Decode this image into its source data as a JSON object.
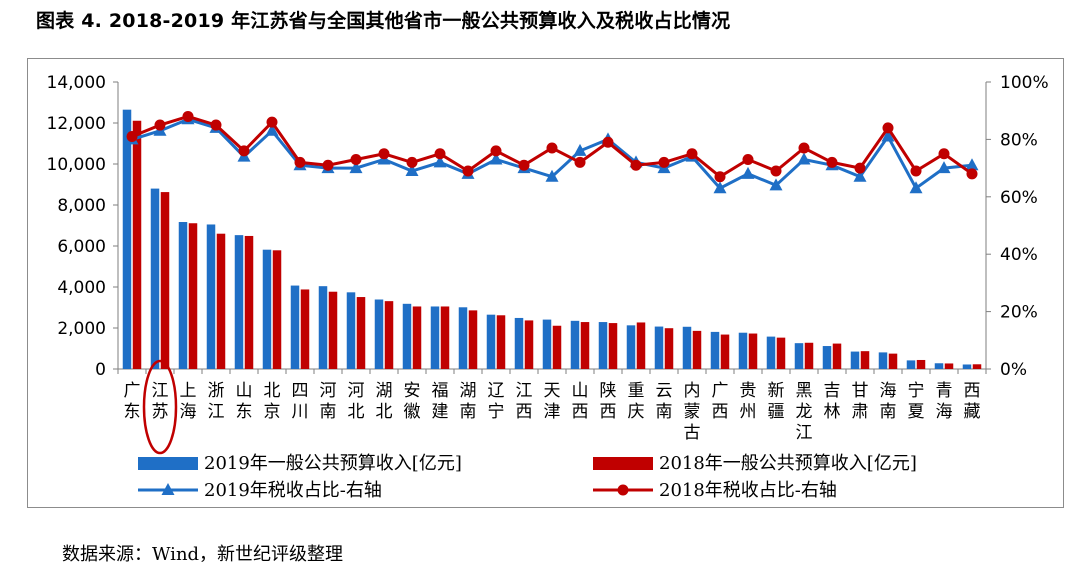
{
  "title": "图表 4. 2018-2019 年江苏省与全国其他省市一般公共预算收入及税收占比情况",
  "source": "数据来源：Wind，新世纪评级整理",
  "colors": {
    "blue": "#1f6fc6",
    "red": "#c00000",
    "axis": "#7f7f7f",
    "highlight": "#c00000"
  },
  "highlight_category": "江苏",
  "chart_data": {
    "type": "bar",
    "categories": [
      "广东",
      "江苏",
      "上海",
      "浙江",
      "山东",
      "北京",
      "四川",
      "河南",
      "河北",
      "湖北",
      "安徽",
      "福建",
      "湖南",
      "辽宁",
      "江西",
      "天津",
      "山西",
      "陕西",
      "重庆",
      "云南",
      "内蒙古",
      "广西",
      "贵州",
      "新疆",
      "黑龙江",
      "吉林",
      "甘肃",
      "海南",
      "宁夏",
      "青海",
      "西藏"
    ],
    "series": [
      {
        "name": "2019年一般公共预算收入[亿元]",
        "type": "bar",
        "axis": "left",
        "values": [
          12650,
          8800,
          7170,
          7050,
          6530,
          5820,
          4070,
          4040,
          3740,
          3390,
          3180,
          3050,
          3010,
          2650,
          2490,
          2410,
          2350,
          2290,
          2130,
          2070,
          2060,
          1810,
          1770,
          1580,
          1260,
          1120,
          850,
          810,
          420,
          280,
          220
        ]
      },
      {
        "name": "2018年一般公共预算收入[亿元]",
        "type": "bar",
        "axis": "left",
        "values": [
          12110,
          8630,
          7110,
          6600,
          6490,
          5790,
          3880,
          3770,
          3510,
          3310,
          3050,
          3050,
          2860,
          2620,
          2370,
          2110,
          2290,
          2240,
          2270,
          1990,
          1860,
          1680,
          1730,
          1530,
          1280,
          1240,
          870,
          750,
          440,
          270,
          230
        ]
      },
      {
        "name": "2019年税收占比-右轴",
        "type": "line",
        "axis": "right",
        "marker": "triangle",
        "values": [
          80,
          83,
          87,
          84,
          74,
          83,
          71,
          70,
          70,
          73,
          69,
          72,
          68,
          73,
          70,
          67,
          76,
          80,
          72,
          70,
          74,
          63,
          68,
          64,
          73,
          71,
          67,
          81,
          63,
          70,
          71
        ]
      },
      {
        "name": "2018年税收占比-右轴",
        "type": "line",
        "axis": "right",
        "marker": "circle",
        "values": [
          81,
          85,
          88,
          85,
          76,
          86,
          72,
          71,
          73,
          75,
          72,
          75,
          69,
          76,
          71,
          77,
          72,
          79,
          71,
          72,
          75,
          67,
          73,
          69,
          77,
          72,
          70,
          84,
          69,
          75,
          68
        ]
      }
    ],
    "y_left": {
      "min": 0,
      "max": 14000,
      "ticks": [
        "0",
        "2,000",
        "4,000",
        "6,000",
        "8,000",
        "10,000",
        "12,000",
        "14,000"
      ]
    },
    "y_right": {
      "min": 0,
      "max": 100,
      "ticks": [
        "0%",
        "20%",
        "40%",
        "60%",
        "80%",
        "100%"
      ]
    },
    "grid": false,
    "legend_position": "bottom"
  }
}
